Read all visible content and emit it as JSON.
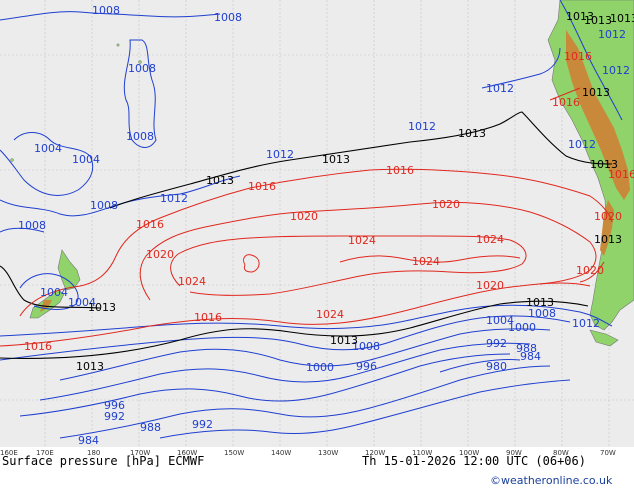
{
  "map": {
    "title": "Surface pressure [hPa] ECMWF",
    "valid_time": "Th 15-01-2026 12:00 UTC (06+06)",
    "credit": "©weatheronline.co.uk",
    "colors": {
      "ocean": "#ececec",
      "land": "#8fd36a",
      "land_high": "#c8893a",
      "isobar_low": "#1f3fd0",
      "isobar_normal": "#000000",
      "isobar_high": "#e0281e",
      "coast": "#777777"
    },
    "longitude_ticks": [
      "160E",
      "170E",
      "180",
      "170W",
      "160W",
      "150W",
      "140W",
      "130W",
      "120W",
      "110W",
      "100W",
      "90W",
      "80W",
      "70W"
    ],
    "isobar_labels": {
      "blue": [
        "1008",
        "1008",
        "1008",
        "1008",
        "1004",
        "1004",
        "1008",
        "1012",
        "1012",
        "1012",
        "1008",
        "1004",
        "1004",
        "1008",
        "1004",
        "1000",
        "1008",
        "1000",
        "996",
        "992",
        "988",
        "984",
        "980",
        "996",
        "992",
        "988",
        "992",
        "984",
        "1012",
        "1012",
        "1012",
        "1012",
        "1012"
      ],
      "black": [
        "1013",
        "1013",
        "1013",
        "1013",
        "1013",
        "1013",
        "1013",
        "1013",
        "1013",
        "1013",
        "1013",
        "1013",
        "1013"
      ],
      "red": [
        "1016",
        "1016",
        "1016",
        "1016",
        "1020",
        "1020",
        "1020",
        "1024",
        "1024",
        "1024",
        "1024",
        "1024",
        "1020",
        "1020",
        "1016",
        "1020",
        "1016",
        "1016",
        "1016"
      ]
    }
  }
}
